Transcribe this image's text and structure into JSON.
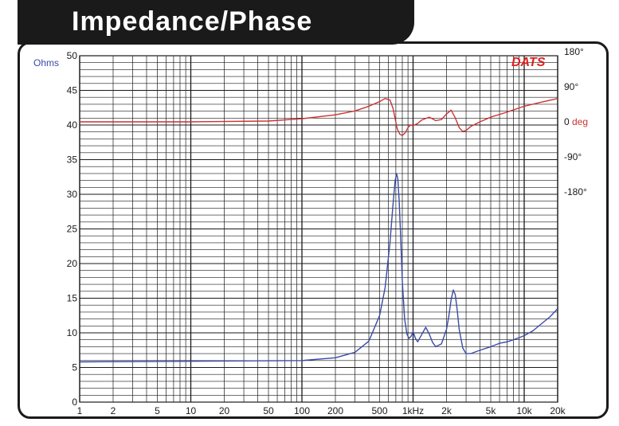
{
  "title": "Impedance/Phase",
  "logo": "DATS",
  "colors": {
    "impedance": "#3a4aa8",
    "phase": "#cc3333",
    "grid": "#1a1a1a",
    "frame": "#1a1a1a"
  },
  "chart_data": {
    "type": "line",
    "xscale": "log",
    "xlim": [
      1,
      20000
    ],
    "x_ticks": [
      {
        "v": 1,
        "label": "1"
      },
      {
        "v": 2,
        "label": "2"
      },
      {
        "v": 5,
        "label": "5"
      },
      {
        "v": 10,
        "label": "10"
      },
      {
        "v": 20,
        "label": "20"
      },
      {
        "v": 50,
        "label": "50"
      },
      {
        "v": 100,
        "label": "100"
      },
      {
        "v": 200,
        "label": "200"
      },
      {
        "v": 500,
        "label": "500"
      },
      {
        "v": 1000,
        "label": "1kHz"
      },
      {
        "v": 2000,
        "label": "2k"
      },
      {
        "v": 5000,
        "label": "5k"
      },
      {
        "v": 10000,
        "label": "10k"
      },
      {
        "v": 20000,
        "label": "20k"
      }
    ],
    "ylabel": "Ohms",
    "ylim": [
      0,
      50
    ],
    "y_ticks": [
      "0",
      "5",
      "10",
      "15",
      "20",
      "25",
      "30",
      "35",
      "40",
      "45",
      "50"
    ],
    "y2label": "deg",
    "y2_ticks": [
      {
        "v": 180,
        "label": "180°"
      },
      {
        "v": 90,
        "label": "90°"
      },
      {
        "v": 0,
        "label": "0"
      },
      {
        "v": -90,
        "label": "-90°"
      },
      {
        "v": -180,
        "label": "-180°"
      }
    ],
    "series": [
      {
        "axis": "ohms",
        "x": [
          1,
          10,
          100,
          200,
          300,
          400,
          500,
          560,
          620,
          660,
          690,
          710,
          730,
          750,
          770,
          800,
          840,
          880,
          920,
          960,
          1000,
          1050,
          1100,
          1200,
          1300,
          1400,
          1500,
          1600,
          1800,
          2000,
          2100,
          2200,
          2300,
          2400,
          2500,
          2600,
          2800,
          3000,
          3300,
          3700,
          4200,
          5000,
          6000,
          7000,
          8000,
          9000,
          10000,
          12000,
          14000,
          17000,
          20000
        ],
        "y": [
          5.8,
          5.9,
          6.0,
          6.4,
          7.2,
          8.8,
          12.5,
          16.5,
          23.0,
          28.5,
          32.0,
          33.0,
          32.2,
          29.0,
          24.5,
          17.5,
          12.0,
          9.8,
          9.2,
          9.5,
          10.2,
          9.2,
          8.7,
          9.8,
          10.8,
          9.8,
          8.6,
          8.0,
          8.4,
          10.5,
          12.5,
          14.8,
          16.2,
          15.5,
          13.2,
          10.5,
          7.8,
          7.0,
          7.0,
          7.3,
          7.6,
          8.0,
          8.5,
          8.7,
          9.0,
          9.3,
          9.6,
          10.3,
          11.2,
          12.3,
          13.5
        ]
      },
      {
        "axis": "deg",
        "x": [
          1,
          10,
          50,
          100,
          200,
          300,
          400,
          500,
          560,
          620,
          660,
          690,
          720,
          760,
          800,
          850,
          900,
          950,
          1000,
          1100,
          1200,
          1400,
          1600,
          1800,
          2000,
          2200,
          2400,
          2600,
          2800,
          3000,
          3300,
          4000,
          5000,
          7000,
          10000,
          14000,
          20000
        ],
        "y": [
          0,
          0,
          2,
          8,
          18,
          28,
          40,
          52,
          60,
          56,
          35,
          8,
          -18,
          -32,
          -35,
          -28,
          -15,
          -8,
          -10,
          -4,
          5,
          12,
          3,
          6,
          20,
          30,
          10,
          -15,
          -25,
          -22,
          -12,
          0,
          12,
          25,
          40,
          50,
          60
        ]
      }
    ]
  }
}
